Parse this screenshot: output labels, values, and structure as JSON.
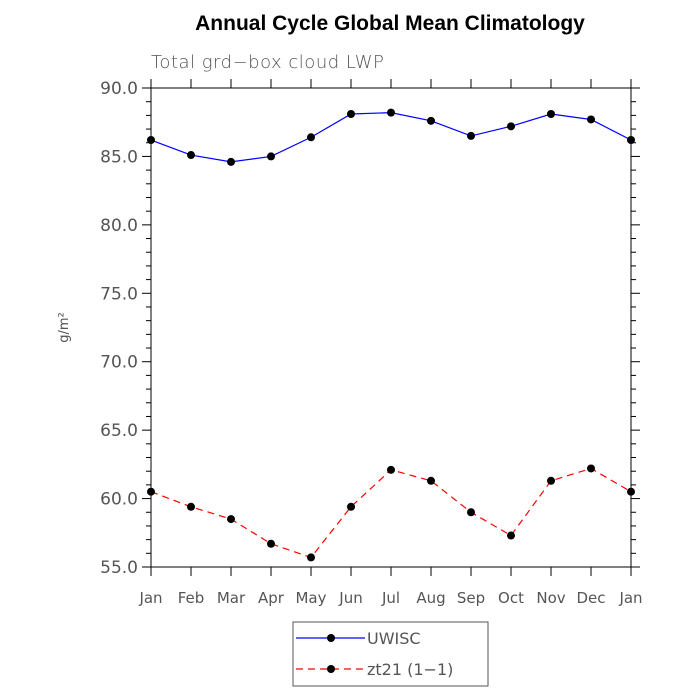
{
  "chart_data": {
    "type": "line",
    "title": "Annual Cycle Global Mean Climatology",
    "subtitle": "Total grd−box cloud LWP",
    "ylabel": "g/m²",
    "xlabel": "",
    "categories": [
      "Jan",
      "Feb",
      "Mar",
      "Apr",
      "May",
      "Jun",
      "Jul",
      "Aug",
      "Sep",
      "Oct",
      "Nov",
      "Dec",
      "Jan"
    ],
    "ylim": [
      55,
      90
    ],
    "yticks": [
      "55.0",
      "60.0",
      "65.0",
      "70.0",
      "75.0",
      "80.0",
      "85.0",
      "90.0"
    ],
    "grid": false,
    "legend_position": "bottom-center",
    "series": [
      {
        "name": "UWISC",
        "color": "#0000ff",
        "line_style": "solid",
        "marker": "filled-circle",
        "values": [
          86.2,
          85.1,
          84.6,
          85.0,
          86.4,
          88.1,
          88.2,
          87.6,
          86.5,
          87.2,
          88.1,
          87.7,
          86.2
        ]
      },
      {
        "name": "zt21 (1−1)",
        "color": "#ff0000",
        "line_style": "dashed",
        "marker": "filled-circle",
        "values": [
          60.5,
          59.4,
          58.5,
          56.7,
          55.7,
          59.4,
          62.1,
          61.3,
          59.0,
          57.3,
          61.3,
          62.2,
          60.5
        ]
      }
    ]
  }
}
